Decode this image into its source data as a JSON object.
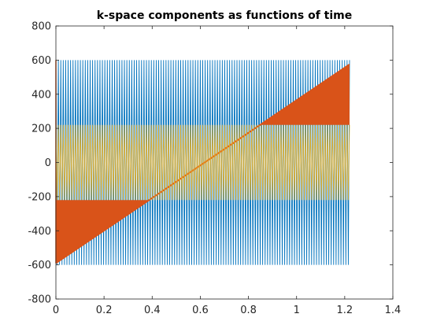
{
  "chart_data": {
    "type": "line",
    "title": "k-space components as functions of time",
    "xlabel": "",
    "ylabel": "",
    "xlim": [
      0,
      1.4
    ],
    "ylim": [
      -800,
      800
    ],
    "xticks": [
      0,
      0.2,
      0.4,
      0.6,
      0.8,
      1,
      1.2,
      1.4
    ],
    "xtick_labels": [
      "0",
      "0.2",
      "0.4",
      "0.6",
      "0.8",
      "1",
      "1.2",
      "1.4"
    ],
    "yticks": [
      -800,
      -600,
      -400,
      -200,
      0,
      200,
      400,
      600,
      800
    ],
    "ytick_labels": [
      "-800",
      "-600",
      "-400",
      "-200",
      "0",
      "200",
      "400",
      "600",
      "800"
    ],
    "grid": false,
    "legend": "none",
    "series": [
      {
        "color": "#0072BD",
        "shape": "dense oscillation",
        "x_range": [
          0,
          1.22
        ],
        "y_range": [
          -600,
          600
        ],
        "cycles": 120
      },
      {
        "color": "#D95319",
        "shape": "linear ramp with dense oscillation outside ±220",
        "x_range": [
          0,
          1.22
        ],
        "x": [
          0,
          1.22
        ],
        "y": [
          -590,
          575
        ],
        "band": [
          -220,
          220
        ]
      },
      {
        "color": "#EDB120",
        "shape": "dense oscillation",
        "x_range": [
          0,
          1.22
        ],
        "y_range": [
          -220,
          220
        ],
        "cycles": 120
      }
    ]
  }
}
